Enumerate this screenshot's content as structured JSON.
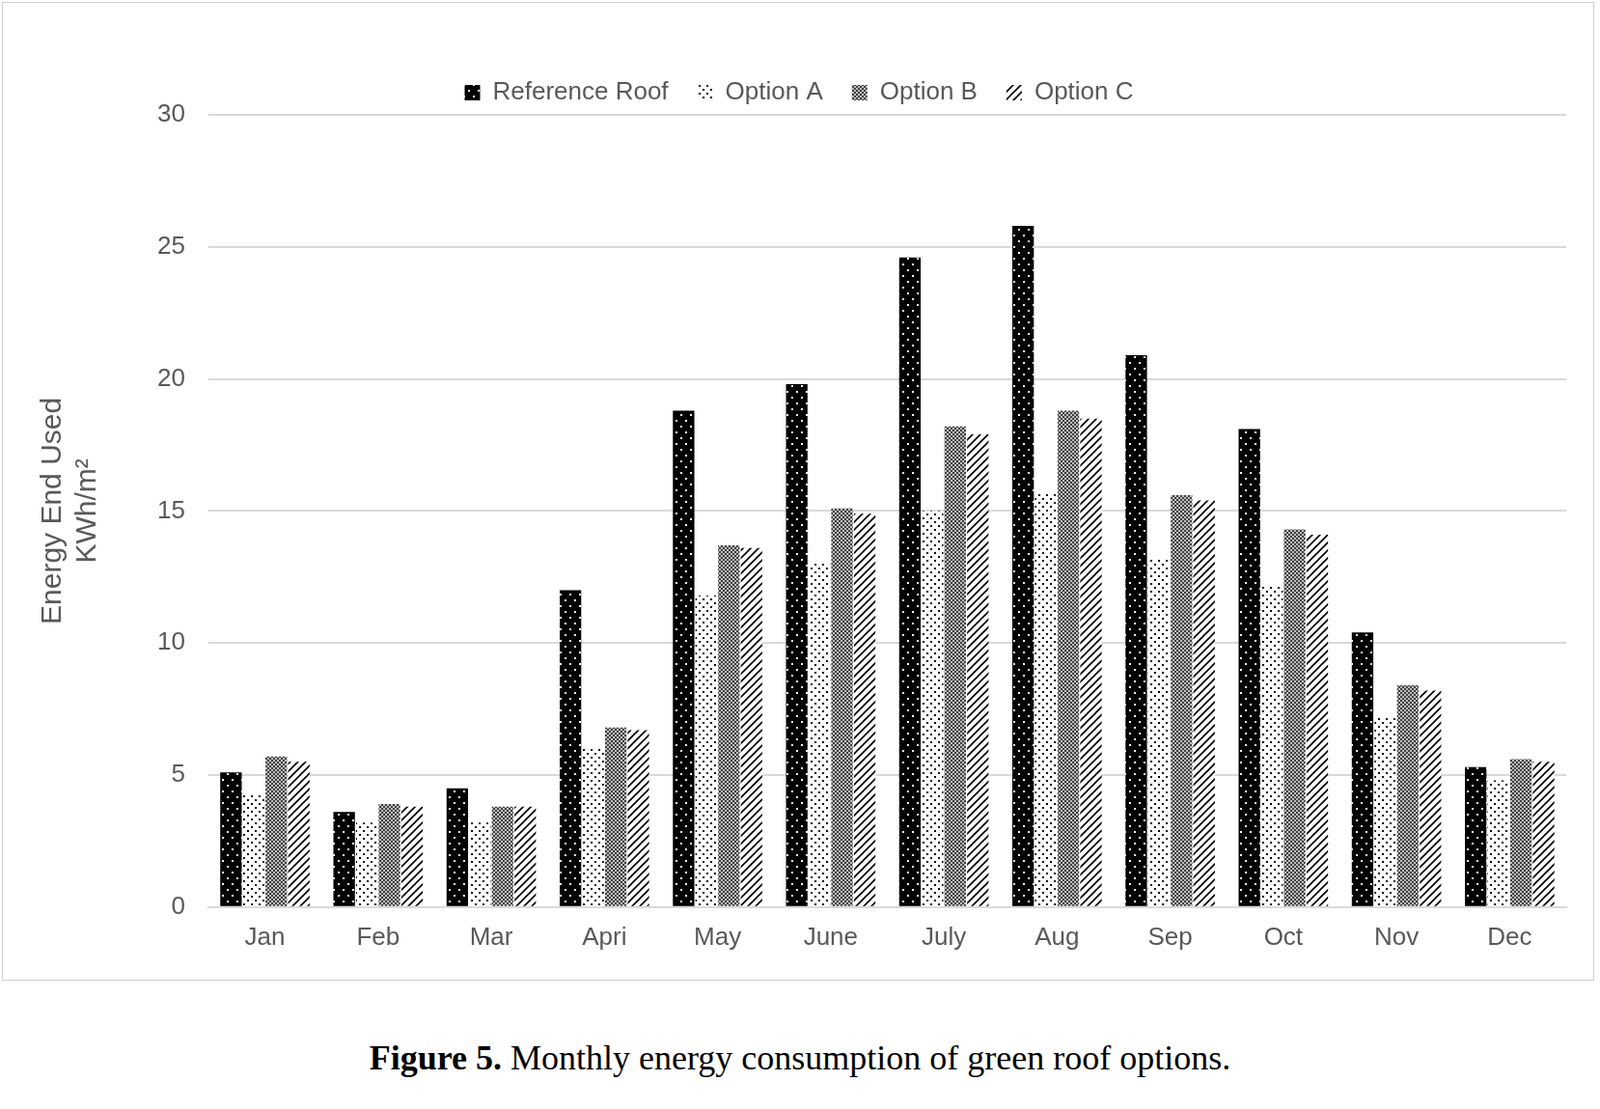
{
  "chart_data": {
    "type": "bar",
    "y_label": [
      "Energy End Used",
      "KWh/m²"
    ],
    "caption_label": "Figure 5.",
    "caption": "Monthly energy consumption of green roof options.",
    "categories": [
      "Jan",
      "Feb",
      "Mar",
      "Apri",
      "May",
      "June",
      "July",
      "Aug",
      "Sep",
      "Oct",
      "Nov",
      "Dec"
    ],
    "series": [
      {
        "name": "Reference Roof",
        "color": "#000000",
        "values": [
          5.1,
          3.6,
          4.5,
          12.0,
          18.8,
          19.8,
          24.6,
          25.8,
          20.9,
          18.1,
          10.4,
          5.3
        ]
      },
      {
        "name": "Option A",
        "color": "#ffffff",
        "values": [
          4.3,
          3.2,
          3.2,
          6.0,
          11.8,
          13.0,
          15.0,
          15.7,
          13.2,
          12.2,
          7.2,
          4.8
        ]
      },
      {
        "name": "Option B",
        "color": "#404040",
        "values": [
          5.7,
          3.9,
          3.8,
          6.8,
          13.7,
          15.1,
          18.2,
          18.8,
          15.6,
          14.3,
          8.4,
          5.6
        ]
      },
      {
        "name": "Option C",
        "color": "#ffffff",
        "values": [
          5.5,
          3.8,
          3.8,
          6.7,
          13.6,
          14.9,
          17.9,
          18.5,
          15.4,
          14.1,
          8.2,
          5.5
        ]
      }
    ],
    "ylim": [
      0,
      30
    ],
    "yticks": [
      0,
      5,
      10,
      15,
      20,
      25,
      30
    ],
    "grid": true,
    "legend": "top"
  }
}
